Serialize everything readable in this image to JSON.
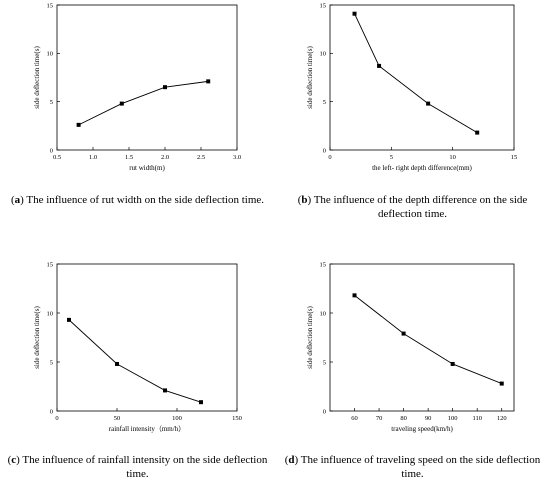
{
  "panels": [
    {
      "letter": "a",
      "caption": "The influence of rut width on the side deflection time.",
      "chart_data": {
        "type": "line",
        "xlabel": "rut width(m)",
        "ylabel": "side deflection time(s)",
        "xlim": [
          0.5,
          3.0
        ],
        "ylim": [
          0,
          15
        ],
        "xticks": [
          "0.5",
          "1.0",
          "1.5",
          "2.0",
          "2.5",
          "3.0"
        ],
        "xtick_values": [
          0.5,
          1.0,
          1.5,
          2.0,
          2.5,
          3.0
        ],
        "yticks": [
          "0",
          "5",
          "10",
          "15"
        ],
        "ytick_values": [
          0,
          5,
          10,
          15
        ],
        "x": [
          0.8,
          1.4,
          2.0,
          2.6
        ],
        "y": [
          2.6,
          4.8,
          6.5,
          7.1
        ],
        "marker": "square"
      }
    },
    {
      "letter": "b",
      "caption": "The influence of the depth difference on the side deflection time.",
      "chart_data": {
        "type": "line",
        "xlabel": "the left- right depth difference(mm)",
        "ylabel": "side deflection time(s)",
        "xlim": [
          0,
          15
        ],
        "ylim": [
          0,
          15
        ],
        "xticks": [
          "0",
          "5",
          "10",
          "15"
        ],
        "xtick_values": [
          0,
          5,
          10,
          15
        ],
        "yticks": [
          "0",
          "5",
          "10",
          "15"
        ],
        "ytick_values": [
          0,
          5,
          10,
          15
        ],
        "x": [
          2,
          4,
          8,
          12
        ],
        "y": [
          14.1,
          8.7,
          4.8,
          1.8
        ],
        "marker": "square"
      }
    },
    {
      "letter": "c",
      "caption": "The influence of rainfall intensity on the side deflection time.",
      "chart_data": {
        "type": "line",
        "xlabel": "rainfall intensity（mm/h）",
        "ylabel": "side deflection time(s)",
        "xlim": [
          0,
          150
        ],
        "ylim": [
          0,
          15
        ],
        "xticks": [
          "0",
          "50",
          "100",
          "150"
        ],
        "xtick_values": [
          0,
          50,
          100,
          150
        ],
        "yticks": [
          "0",
          "5",
          "10",
          "15"
        ],
        "ytick_values": [
          0,
          5,
          10,
          15
        ],
        "x": [
          10,
          50,
          90,
          120
        ],
        "y": [
          9.3,
          4.8,
          2.1,
          0.9
        ],
        "marker": "square"
      }
    },
    {
      "letter": "d",
      "caption": "The influence of traveling speed on the side deflection time.",
      "chart_data": {
        "type": "line",
        "xlabel": "traveling speed(km/h)",
        "ylabel": "side deflection time(s)",
        "xlim": [
          50,
          125
        ],
        "ylim": [
          0,
          15
        ],
        "xticks": [
          "60",
          "70",
          "80",
          "90",
          "100",
          "110",
          "120"
        ],
        "xtick_values": [
          60,
          70,
          80,
          90,
          100,
          110,
          120
        ],
        "yticks": [
          "0",
          "5",
          "10",
          "15"
        ],
        "ytick_values": [
          0,
          5,
          10,
          15
        ],
        "x": [
          60,
          80,
          100,
          120
        ],
        "y": [
          11.8,
          7.9,
          4.8,
          2.8
        ],
        "marker": "square"
      }
    }
  ]
}
